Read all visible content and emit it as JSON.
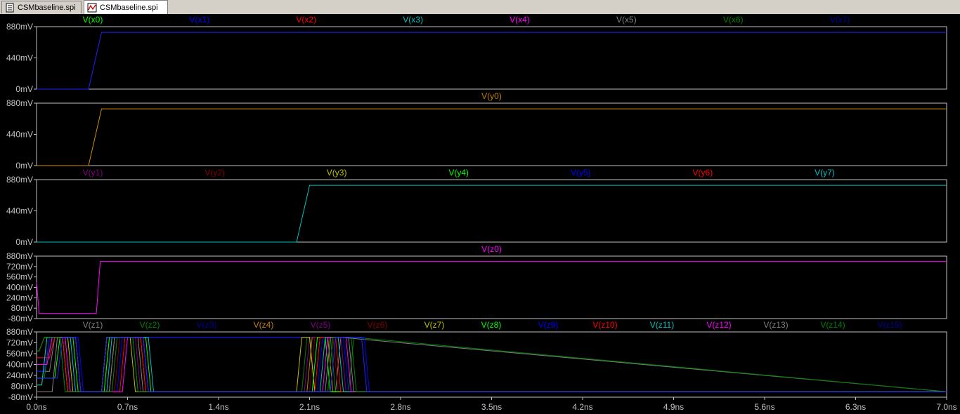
{
  "tabs": [
    {
      "label": "CSMbaseline.spi",
      "icon": "netlist-document-icon",
      "active": false
    },
    {
      "label": "CSMbaseline.spi",
      "icon": "waveform-plot-icon",
      "active": true
    }
  ],
  "chart_data": {
    "type": "line",
    "xlabel": "",
    "x_ticks": [
      "0.0ns",
      "0.7ns",
      "1.4ns",
      "2.1ns",
      "2.8ns",
      "3.5ns",
      "4.2ns",
      "4.9ns",
      "5.6ns",
      "6.3ns",
      "7.0ns"
    ],
    "xlim_ns": [
      0,
      7.0
    ],
    "grid": false,
    "background": "#000000",
    "panes": [
      {
        "ylim_mV": [
          0,
          880
        ],
        "y_ticks": [
          "880mV",
          "440mV",
          "0mV"
        ],
        "trace_names": [
          {
            "name": "V(x0)",
            "color": "#00ff00"
          },
          {
            "name": "V(x1)",
            "color": "#0000ff"
          },
          {
            "name": "V(x2)",
            "color": "#ff0000"
          },
          {
            "name": "V(x3)",
            "color": "#00c0c0"
          },
          {
            "name": "V(x4)",
            "color": "#ff00ff"
          },
          {
            "name": "V(x5)",
            "color": "#808080"
          },
          {
            "name": "V(x6)",
            "color": "#008000"
          },
          {
            "name": "V(x7)",
            "color": "#0000a0"
          }
        ],
        "series": [
          {
            "name": "V(x1)",
            "color": "#2020ff",
            "x": [
              0,
              0.4,
              0.5,
              7.0
            ],
            "y": [
              0,
              0,
              800,
              800
            ]
          }
        ]
      },
      {
        "ylim_mV": [
          0,
          880
        ],
        "y_ticks": [
          "880mV",
          "440mV",
          "0mV"
        ],
        "trace_names": [
          {
            "name": "V(y0)",
            "color": "#c08000"
          }
        ],
        "series": [
          {
            "name": "V(y0)",
            "color": "#d09000",
            "x": [
              0,
              0.4,
              0.5,
              7.0
            ],
            "y": [
              0,
              0,
              800,
              800
            ]
          }
        ]
      },
      {
        "ylim_mV": [
          0,
          880
        ],
        "y_ticks": [
          "880mV",
          "440mV",
          "0mV"
        ],
        "trace_names": [
          {
            "name": "V(y1)",
            "color": "#800080"
          },
          {
            "name": "V(y2)",
            "color": "#800000"
          },
          {
            "name": "V(y3)",
            "color": "#c0c000"
          },
          {
            "name": "V(y4)",
            "color": "#00ff00"
          },
          {
            "name": "V(y5)",
            "color": "#0000ff"
          },
          {
            "name": "V(y6)",
            "color": "#ff0000"
          },
          {
            "name": "V(y7)",
            "color": "#00c0c0"
          }
        ],
        "series": [
          {
            "name": "V(y7)",
            "color": "#00c0c0",
            "x": [
              0,
              2.0,
              2.1,
              7.0
            ],
            "y": [
              0,
              0,
              800,
              800
            ]
          }
        ]
      },
      {
        "ylim_mV": [
          -80,
          880
        ],
        "y_ticks": [
          "880mV",
          "720mV",
          "560mV",
          "400mV",
          "240mV",
          "80mV",
          "-80mV"
        ],
        "trace_names": [
          {
            "name": "V(z0)",
            "color": "#ff00ff"
          }
        ],
        "series": [
          {
            "name": "V(z0)",
            "color": "#ff00ff",
            "x": [
              0,
              0.02,
              0.46,
              0.49,
              7.0
            ],
            "y": [
              480,
              0,
              0,
              800,
              800
            ]
          }
        ]
      },
      {
        "ylim_mV": [
          -80,
          880
        ],
        "y_ticks": [
          "880mV",
          "720mV",
          "560mV",
          "400mV",
          "240mV",
          "80mV",
          "-80mV"
        ],
        "trace_names": [
          {
            "name": "V(z1)",
            "color": "#808080"
          },
          {
            "name": "V(z2)",
            "color": "#008000"
          },
          {
            "name": "V(z3)",
            "color": "#0000a0"
          },
          {
            "name": "V(z4)",
            "color": "#c08000"
          },
          {
            "name": "V(z5)",
            "color": "#800080"
          },
          {
            "name": "V(z6)",
            "color": "#800000"
          },
          {
            "name": "V(z7)",
            "color": "#c0c000"
          },
          {
            "name": "V(z8)",
            "color": "#00ff00"
          },
          {
            "name": "V(z9)",
            "color": "#0000ff"
          },
          {
            "name": "V(z10)",
            "color": "#ff0000"
          },
          {
            "name": "V(z11)",
            "color": "#00c0c0"
          },
          {
            "name": "V(z12)",
            "color": "#ff00ff"
          },
          {
            "name": "V(z13)",
            "color": "#808080"
          },
          {
            "name": "V(z14)",
            "color": "#008000"
          },
          {
            "name": "V(z15)",
            "color": "#0000a0"
          }
        ],
        "series": [
          {
            "name": "V(z1)",
            "color": "#808080",
            "x": [
              0,
              0.1,
              0.14,
              0.2,
              0.24,
              0.5,
              0.54,
              0.7,
              0.74,
              2.1,
              2.14,
              2.3,
              2.34,
              7.0
            ],
            "y": [
              300,
              300,
              800,
              800,
              0,
              0,
              800,
              800,
              800,
              800,
              0,
              0,
              800,
              0
            ]
          },
          {
            "name": "V(z2)",
            "color": "#008000",
            "x": [
              0,
              0.06,
              0.1,
              0.18,
              0.22,
              0.52,
              0.56,
              0.74,
              0.78,
              2.04,
              2.08,
              2.26,
              2.3,
              2.4,
              2.44,
              7.0
            ],
            "y": [
              200,
              200,
              800,
              800,
              0,
              0,
              800,
              800,
              0,
              0,
              800,
              800,
              0,
              0,
              800,
              0
            ]
          },
          {
            "name": "V(z3)",
            "color": "#0000ff",
            "x": [
              0,
              0.1,
              0.14,
              0.26,
              0.3,
              0.54,
              0.58,
              0.72,
              0.76,
              2.02,
              2.06,
              2.3,
              2.34,
              2.46,
              2.5,
              2.52,
              2.56,
              7.0
            ],
            "y": [
              500,
              500,
              800,
              800,
              0,
              0,
              800,
              800,
              800,
              800,
              800,
              800,
              800,
              800,
              800,
              800,
              0,
              0
            ]
          },
          {
            "name": "V(z4)",
            "color": "#c08000",
            "x": [
              0,
              0.04,
              0.08,
              0.2,
              0.24,
              0.56,
              0.6,
              0.8,
              0.84,
              2.08,
              2.12,
              2.24,
              2.28,
              7.0
            ],
            "y": [
              100,
              100,
              800,
              800,
              0,
              0,
              800,
              800,
              0,
              0,
              800,
              800,
              0,
              0
            ]
          },
          {
            "name": "V(z5)",
            "color": "#800080",
            "x": [
              0,
              0.08,
              0.12,
              0.3,
              0.34,
              0.58,
              0.62,
              0.76,
              0.8,
              2.06,
              2.1,
              2.34,
              2.38,
              7.0
            ],
            "y": [
              400,
              400,
              800,
              800,
              0,
              0,
              800,
              800,
              0,
              0,
              800,
              800,
              0,
              0
            ]
          },
          {
            "name": "V(z6)",
            "color": "#800000",
            "x": [
              0,
              0.12,
              0.16,
              0.22,
              0.26,
              0.6,
              0.64,
              0.78,
              0.82,
              2.1,
              2.14,
              2.28,
              2.32,
              7.0
            ],
            "y": [
              0,
              0,
              800,
              800,
              0,
              0,
              800,
              800,
              0,
              0,
              800,
              800,
              0,
              0
            ]
          },
          {
            "name": "V(z7)",
            "color": "#c0c000",
            "x": [
              0,
              0.02,
              0.06,
              0.24,
              0.28,
              0.5,
              0.54,
              0.72,
              0.76,
              2.0,
              2.04,
              2.1,
              2.14,
              7.0
            ],
            "y": [
              600,
              600,
              800,
              800,
              0,
              0,
              800,
              800,
              0,
              0,
              800,
              800,
              0,
              0
            ]
          },
          {
            "name": "V(z8)",
            "color": "#00ff00",
            "x": [
              0,
              0.14,
              0.18,
              0.28,
              0.32,
              0.52,
              0.56,
              0.84,
              0.88,
              2.12,
              2.16,
              2.22,
              2.26,
              7.0
            ],
            "y": [
              200,
              200,
              800,
              800,
              0,
              0,
              800,
              800,
              0,
              0,
              800,
              800,
              0,
              0
            ]
          },
          {
            "name": "V(z9)",
            "color": "#0000ff",
            "x": [
              0,
              0.06,
              0.1,
              0.32,
              0.36,
              0.62,
              0.66,
              0.82,
              0.86,
              2.16,
              2.2,
              2.36,
              2.4,
              7.0
            ],
            "y": [
              300,
              300,
              800,
              800,
              0,
              0,
              800,
              800,
              0,
              0,
              800,
              800,
              0,
              0
            ]
          },
          {
            "name": "V(z10)",
            "color": "#ff0000",
            "x": [
              0,
              0.1,
              0.14,
              0.2,
              0.24,
              0.64,
              0.68,
              0.8,
              0.84,
              2.14,
              2.18,
              2.3,
              2.34,
              7.0
            ],
            "y": [
              500,
              500,
              800,
              800,
              0,
              0,
              800,
              800,
              0,
              0,
              800,
              800,
              0,
              0
            ]
          },
          {
            "name": "V(z11)",
            "color": "#00c0c0",
            "x": [
              0,
              0.04,
              0.08,
              0.26,
              0.3,
              0.54,
              0.58,
              0.86,
              0.9,
              2.18,
              2.22,
              2.32,
              2.36,
              7.0
            ],
            "y": [
              100,
              100,
              800,
              800,
              0,
              0,
              800,
              800,
              0,
              0,
              800,
              800,
              0,
              0
            ]
          },
          {
            "name": "V(z12)",
            "color": "#ff00ff",
            "x": [
              0,
              0.08,
              0.12,
              0.22,
              0.26,
              0.66,
              0.7,
              0.82,
              0.86,
              2.2,
              2.24,
              2.38,
              2.42,
              7.0
            ],
            "y": [
              400,
              400,
              800,
              800,
              0,
              0,
              800,
              800,
              0,
              0,
              800,
              800,
              0,
              0
            ]
          },
          {
            "name": "V(z13)",
            "color": "#808080",
            "x": [
              0,
              0.12,
              0.16,
              0.3,
              0.34,
              0.56,
              0.6,
              0.78,
              0.82,
              2.22,
              2.26,
              2.4,
              2.44,
              7.0
            ],
            "y": [
              0,
              0,
              800,
              800,
              0,
              0,
              800,
              800,
              0,
              0,
              800,
              800,
              0,
              0
            ]
          },
          {
            "name": "V(z14)",
            "color": "#008000",
            "x": [
              0,
              0.02,
              0.06,
              0.18,
              0.22,
              0.58,
              0.62,
              0.74,
              0.78,
              2.24,
              2.28,
              2.42,
              2.46,
              7.0
            ],
            "y": [
              600,
              600,
              800,
              800,
              0,
              0,
              800,
              800,
              0,
              0,
              800,
              800,
              0,
              0
            ]
          },
          {
            "name": "V(z15)",
            "color": "#2020ff",
            "x": [
              0,
              0.16,
              0.2,
              0.3,
              0.34,
              0.5,
              0.54,
              0.82,
              0.86,
              2.26,
              2.3,
              2.5,
              2.54,
              7.0
            ],
            "y": [
              200,
              200,
              800,
              800,
              0,
              0,
              800,
              800,
              0,
              0,
              800,
              800,
              0,
              0
            ]
          }
        ]
      }
    ]
  }
}
